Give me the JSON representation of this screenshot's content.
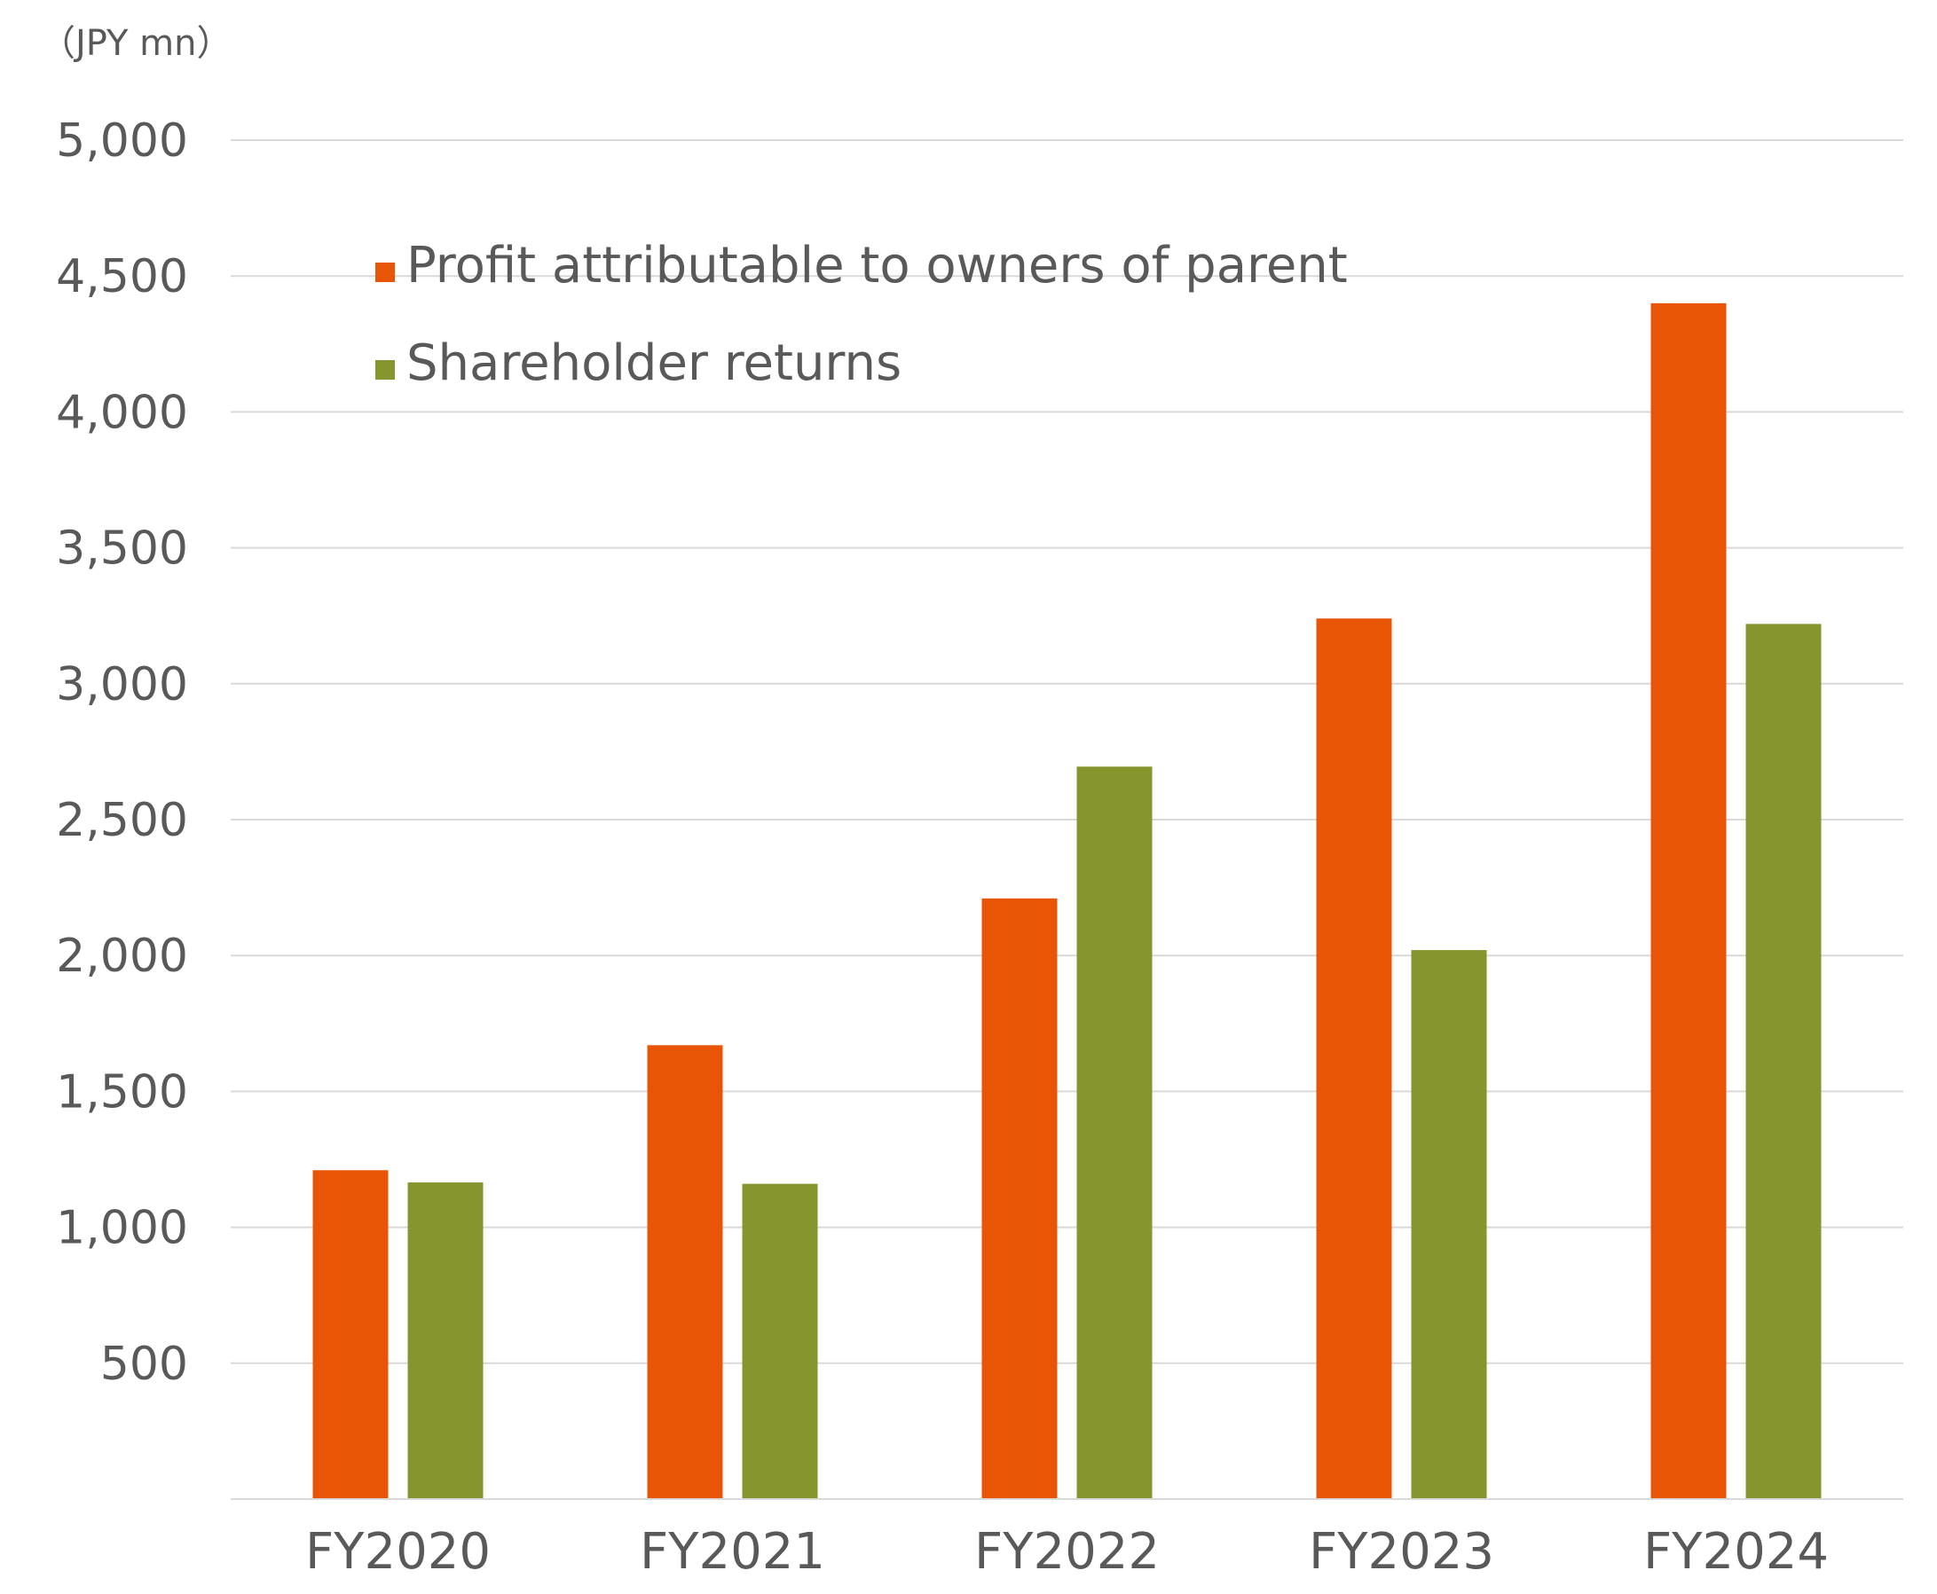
{
  "chart_data": {
    "type": "bar",
    "unit_label": "（JPY mn）",
    "categories": [
      "FY2020",
      "FY2021",
      "FY2022",
      "FY2023",
      "FY2024"
    ],
    "series": [
      {
        "name": "Profit attributable to owners of parent",
        "color": "#e95506",
        "values": [
          1210,
          1670,
          2210,
          3240,
          4400
        ]
      },
      {
        "name": "Shareholder returns",
        "color": "#87952f",
        "values": [
          1165,
          1160,
          2695,
          2020,
          3220
        ]
      }
    ],
    "ylim": [
      0,
      5000
    ],
    "yticks": [
      500,
      1000,
      1500,
      2000,
      2500,
      3000,
      3500,
      4000,
      4500,
      5000
    ],
    "ytick_labels": [
      "500",
      "1,000",
      "1,500",
      "2,000",
      "2,500",
      "3,000",
      "3,500",
      "4,000",
      "4,500",
      "5,000"
    ],
    "grid": true,
    "legend_position": "top-left"
  }
}
